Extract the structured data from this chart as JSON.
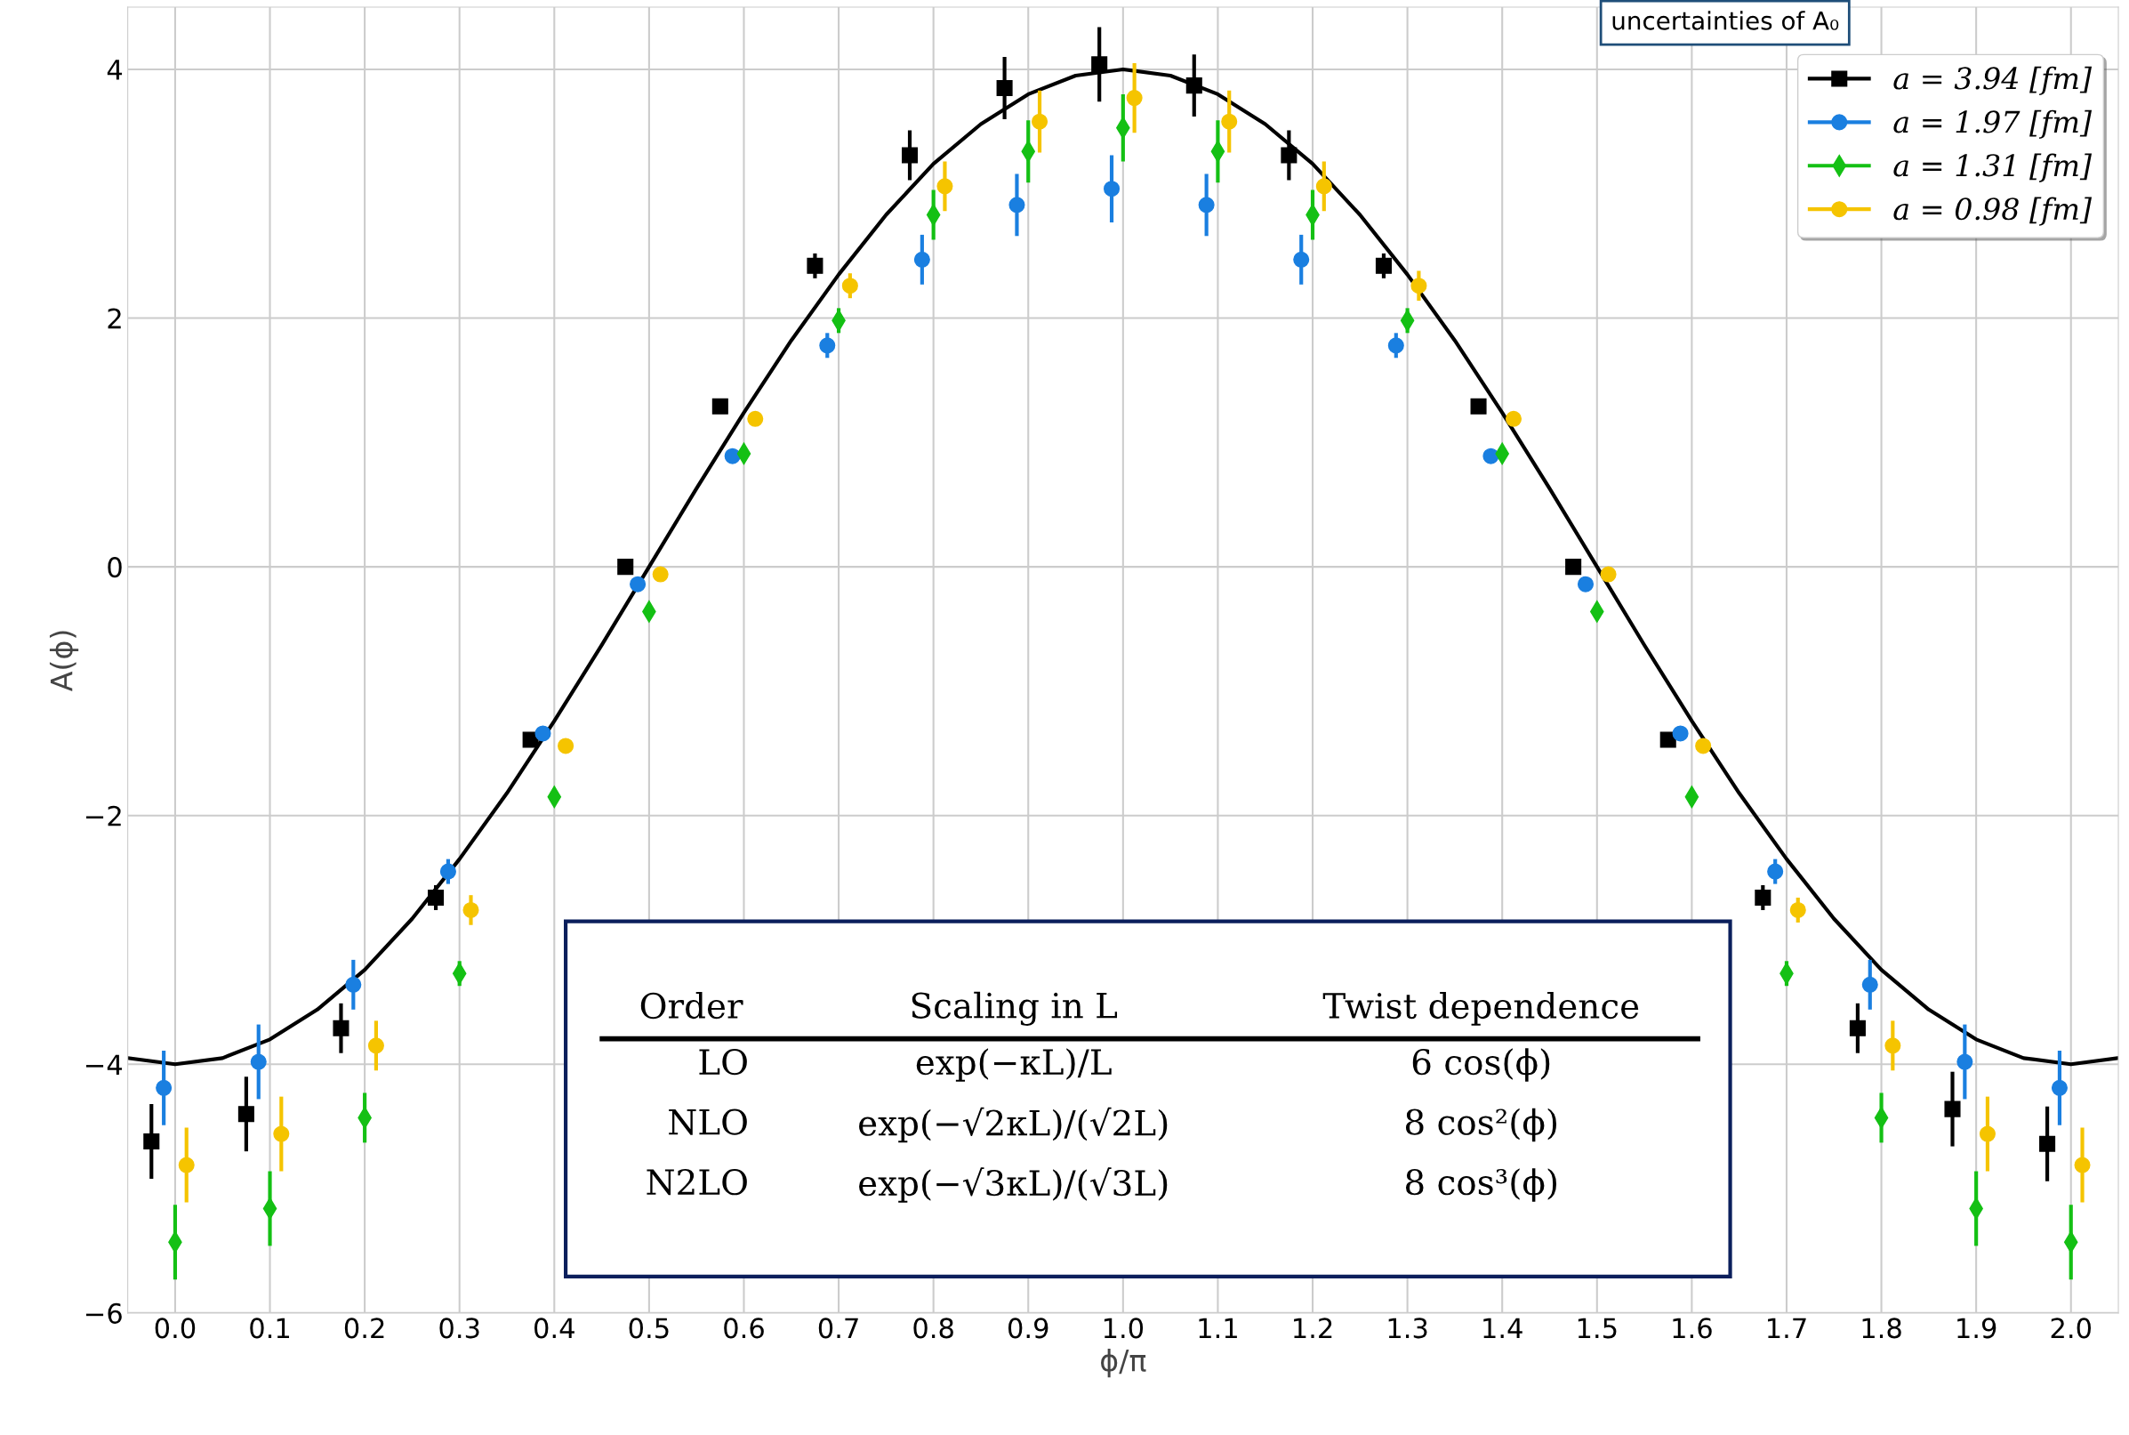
{
  "chart_data": {
    "type": "scatter",
    "xlabel": "ϕ/π",
    "ylabel": "A(ϕ)",
    "xlim": [
      -0.05,
      2.05
    ],
    "ylim": [
      -6,
      4.5
    ],
    "xticks": [
      {
        "value": 0,
        "label": "0.0"
      },
      0.1,
      0.2,
      0.3,
      0.4,
      0.5,
      0.6,
      0.7,
      0.8,
      0.9,
      {
        "value": 1,
        "label": "1.0"
      },
      1.1,
      1.2,
      1.3,
      1.4,
      1.5,
      1.6,
      1.7,
      1.8,
      1.9,
      {
        "value": 2,
        "label": "2.0"
      }
    ],
    "yticks": [
      -6,
      -4,
      -2,
      0,
      2,
      4
    ],
    "grid": true,
    "legend": "top right",
    "annotations": [
      "uncertainties of A₀",
      "Order",
      "Scaling in L",
      "Twist dependence",
      "LO",
      "exp(−κL)/L",
      "6 cos(ϕ)",
      "NLO",
      "exp(−√2κL)/(√2L)",
      "8 cos²(ϕ)",
      "N2LO",
      "exp(−√3κL)/(√3L)",
      "8 cos³(ϕ)"
    ],
    "series": [
      {
        "type": "line",
        "color": "#000000",
        "marker": "none",
        "x": [
          -0.05,
          0,
          0.05,
          0.1,
          0.15,
          0.2,
          0.25,
          0.3,
          0.35,
          0.4,
          0.45,
          0.5,
          0.55,
          0.6,
          0.65,
          0.7,
          0.75,
          0.8,
          0.85,
          0.9,
          0.95,
          1.0,
          1.05,
          1.1,
          1.15,
          1.2,
          1.25,
          1.3,
          1.35,
          1.4,
          1.45,
          1.5,
          1.55,
          1.6,
          1.65,
          1.7,
          1.75,
          1.8,
          1.85,
          1.9,
          1.95,
          2.0,
          2.05
        ],
        "values": [
          -3.95,
          -4,
          -3.95,
          -3.8,
          -3.56,
          -3.24,
          -2.83,
          -2.35,
          -1.82,
          -1.24,
          -0.63,
          0,
          0.63,
          1.24,
          1.82,
          2.35,
          2.83,
          3.24,
          3.56,
          3.8,
          3.95,
          4,
          3.95,
          3.8,
          3.56,
          3.24,
          2.83,
          2.35,
          1.82,
          1.24,
          0.63,
          0,
          -0.63,
          -1.24,
          -1.82,
          -2.35,
          -2.83,
          -3.24,
          -3.56,
          -3.8,
          -3.95,
          -4,
          -3.95
        ]
      },
      {
        "name": "a = 3.94 [fm]",
        "color": "#000000",
        "marker": "square",
        "x": [
          -0.025,
          0.075,
          0.175,
          0.275,
          0.375,
          0.475,
          0.575,
          0.675,
          0.775,
          0.875,
          0.975,
          1.075,
          1.175,
          1.275,
          1.375,
          1.475,
          1.575,
          1.675,
          1.775,
          1.875,
          1.975
        ],
        "values": [
          -4.62,
          -4.4,
          -3.71,
          -2.66,
          -1.39,
          0,
          1.29,
          2.42,
          3.31,
          3.85,
          4.04,
          3.87,
          3.31,
          2.42,
          1.29,
          0,
          -1.39,
          -2.66,
          -3.71,
          -4.36,
          -4.64
        ],
        "errors": [
          0.3,
          0.3,
          0.2,
          0.1,
          0.05,
          0.03,
          0.05,
          0.1,
          0.2,
          0.25,
          0.3,
          0.25,
          0.2,
          0.1,
          0.05,
          0.03,
          0.05,
          0.1,
          0.2,
          0.3,
          0.3
        ]
      },
      {
        "name": "a = 1.97 [fm]",
        "color": "#1a7fe0",
        "marker": "circle",
        "x": [
          -0.012,
          0.088,
          0.188,
          0.288,
          0.388,
          0.488,
          0.588,
          0.688,
          0.788,
          0.888,
          0.988,
          1.088,
          1.188,
          1.288,
          1.388,
          1.488,
          1.588,
          1.688,
          1.788,
          1.888,
          1.988
        ],
        "values": [
          -4.19,
          -3.98,
          -3.36,
          -2.45,
          -1.34,
          -0.14,
          0.89,
          1.78,
          2.47,
          2.91,
          3.04,
          2.91,
          2.47,
          1.78,
          0.89,
          -0.14,
          -1.34,
          -2.45,
          -3.36,
          -3.98,
          -4.19
        ],
        "errors": [
          0.3,
          0.3,
          0.2,
          0.1,
          0.03,
          0.03,
          0.03,
          0.1,
          0.2,
          0.25,
          0.27,
          0.25,
          0.2,
          0.1,
          0.03,
          0.03,
          0.03,
          0.1,
          0.2,
          0.3,
          0.3
        ]
      },
      {
        "name": "a = 1.31 [fm]",
        "color": "#14c014",
        "marker": "diamond",
        "x": [
          0,
          0.1,
          0.2,
          0.3,
          0.4,
          0.5,
          0.6,
          0.7,
          0.8,
          0.9,
          1.0,
          1.1,
          1.2,
          1.3,
          1.4,
          1.5,
          1.6,
          1.7,
          1.8,
          1.9,
          2.0
        ],
        "values": [
          -5.43,
          -5.16,
          -4.43,
          -3.27,
          -1.85,
          -0.36,
          0.91,
          1.98,
          2.83,
          3.34,
          3.53,
          3.34,
          2.83,
          1.98,
          0.91,
          -0.36,
          -1.85,
          -3.27,
          -4.43,
          -5.16,
          -5.43
        ],
        "errors": [
          0.3,
          0.3,
          0.2,
          0.1,
          0.04,
          0.04,
          0.04,
          0.1,
          0.2,
          0.25,
          0.27,
          0.25,
          0.2,
          0.1,
          0.04,
          0.04,
          0.04,
          0.1,
          0.2,
          0.3,
          0.3
        ]
      },
      {
        "name": "a = 0.98 [fm]",
        "color": "#f5c400",
        "marker": "circle",
        "x": [
          0.012,
          0.112,
          0.212,
          0.312,
          0.412,
          0.512,
          0.612,
          0.712,
          0.812,
          0.912,
          1.012,
          1.112,
          1.212,
          1.312,
          1.412,
          1.512,
          1.612,
          1.712,
          1.812,
          1.912,
          2.012
        ],
        "values": [
          -4.81,
          -4.56,
          -3.85,
          -2.76,
          -1.44,
          -0.06,
          1.19,
          2.26,
          3.06,
          3.58,
          3.77,
          3.58,
          3.06,
          2.26,
          1.19,
          -0.06,
          -1.44,
          -2.76,
          -3.85,
          -4.56,
          -4.81
        ],
        "errors": [
          0.3,
          0.3,
          0.2,
          0.12,
          0.04,
          0.03,
          0.03,
          0.1,
          0.2,
          0.25,
          0.28,
          0.25,
          0.2,
          0.12,
          0.04,
          0.03,
          0.03,
          0.1,
          0.2,
          0.3,
          0.3
        ]
      }
    ]
  }
}
